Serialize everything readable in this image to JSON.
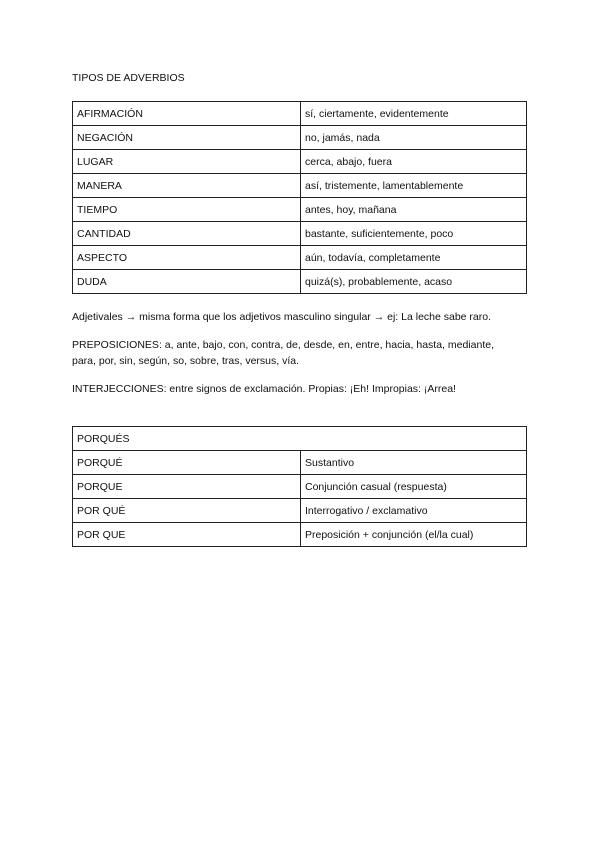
{
  "title": "TIPOS DE ADVERBIOS",
  "adverbios": [
    {
      "tipo": "AFIRMACIÓN",
      "ejemplos": "sí, ciertamente, evidentemente"
    },
    {
      "tipo": "NEGACIÓN",
      "ejemplos": "no, jamás, nada"
    },
    {
      "tipo": "LUGAR",
      "ejemplos": "cerca, abajo, fuera"
    },
    {
      "tipo": "MANERA",
      "ejemplos": "así, tristemente, lamentablemente"
    },
    {
      "tipo": "TIEMPO",
      "ejemplos": "antes, hoy, mañana"
    },
    {
      "tipo": "CANTIDAD",
      "ejemplos": "bastante, suficientemente, poco"
    },
    {
      "tipo": "ASPECTO",
      "ejemplos": "aún, todavía, completamente"
    },
    {
      "tipo": "DUDA",
      "ejemplos": "quizá(s), probablemente, acaso"
    }
  ],
  "adjetivales": "Adjetivales → misma forma que los adjetivos masculino singular → ej: La leche sabe raro.",
  "preposiciones_1": "PREPOSICIONES: a, ante, bajo, con, contra, de, desde, en, entre, hacia, hasta, mediante,",
  "preposiciones_2": "para, por, sin, según, so, sobre, tras, versus, vía.",
  "interjecciones": "INTERJECCIONES: entre signos de exclamación. Propias: ¡Eh! Impropias: ¡Arrea!",
  "porques": {
    "header": "PORQUÉS",
    "rows": [
      {
        "forma": "PORQUÉ",
        "uso": "Sustantivo"
      },
      {
        "forma": "PORQUE",
        "uso": "Conjunción casual (respuesta)"
      },
      {
        "forma": "POR QUÉ",
        "uso": "Interrogativo / exclamativo"
      },
      {
        "forma": "POR QUE",
        "uso": "Preposición + conjunción (el/la cual)"
      }
    ]
  }
}
